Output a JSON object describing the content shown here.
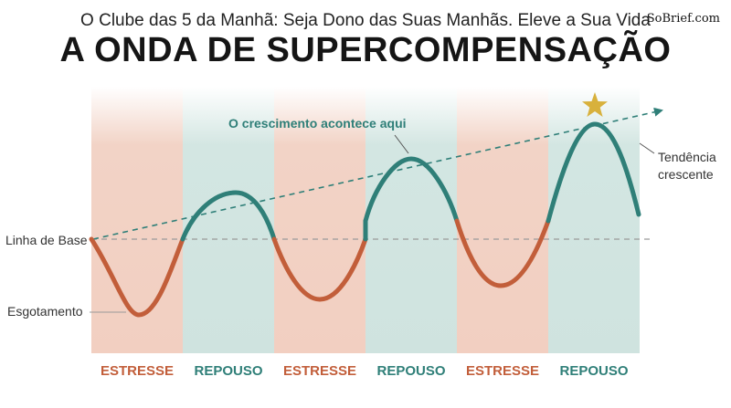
{
  "header": {
    "subtitle": "O Clube das 5 da Manhã: Seja Dono das Suas Manhãs. Eleve a Sua Vida",
    "title": "A ONDA DE SUPERCOMPENSAÇÃO",
    "brand": "SoBrief.com"
  },
  "labels": {
    "baseline": "Linha de Base",
    "depletion": "Esgotamento",
    "growth": "O crescimento acontece aqui",
    "trend_line1": "Tendência",
    "trend_line2": "crescente"
  },
  "phases": [
    {
      "label": "ESTRESSE",
      "type": "stress"
    },
    {
      "label": "REPOUSO",
      "type": "rest"
    },
    {
      "label": "ESTRESSE",
      "type": "stress"
    },
    {
      "label": "REPOUSO",
      "type": "rest"
    },
    {
      "label": "ESTRESSE",
      "type": "stress"
    },
    {
      "label": "REPOUSO",
      "type": "rest"
    }
  ],
  "colors": {
    "stress_band": "#f2d3c6",
    "rest_band": "#d3e6e2",
    "stress_wave": "#c25e3a",
    "rest_wave": "#2f7f78",
    "trend": "#2f7f78",
    "baseline": "#9a9a9a",
    "star": "#d8b13c"
  }
}
